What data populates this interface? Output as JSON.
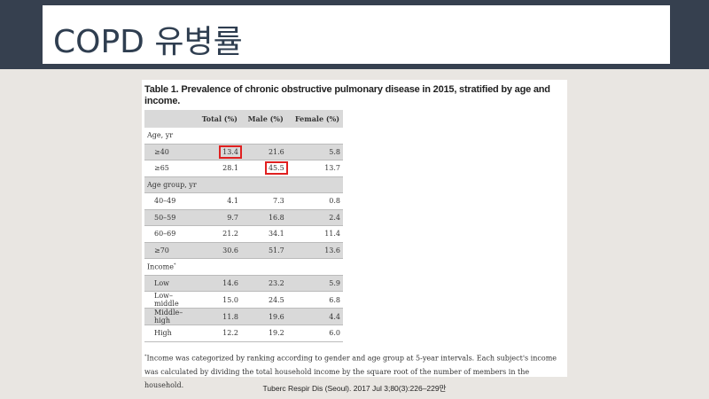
{
  "slide": {
    "title": "COPD 유병률",
    "source": "Tuberc Respir Dis (Seoul). 2017 Jul 3;80(3):226–229만"
  },
  "table": {
    "caption": "Table 1. Prevalence of chronic obstructive pulmonary disease in 2015, stratified by age and income.",
    "columns": [
      "",
      "Total (%)",
      "Male (%)",
      "Female (%)"
    ],
    "rows": [
      {
        "type": "section",
        "label": "Age, yr"
      },
      {
        "label": "≥40",
        "values": [
          "13.4",
          "21.6",
          "5.8"
        ],
        "highlight": [
          0
        ]
      },
      {
        "label": "≥65",
        "values": [
          "28.1",
          "45.5",
          "13.7"
        ],
        "highlight": [
          1
        ]
      },
      {
        "type": "section",
        "label": "Age group, yr"
      },
      {
        "label": "40–49",
        "values": [
          "4.1",
          "7.3",
          "0.8"
        ]
      },
      {
        "label": "50–59",
        "values": [
          "9.7",
          "16.8",
          "2.4"
        ]
      },
      {
        "label": "60–69",
        "values": [
          "21.2",
          "34.1",
          "11.4"
        ]
      },
      {
        "label": "≥70",
        "values": [
          "30.6",
          "51.7",
          "13.6"
        ]
      },
      {
        "type": "section",
        "label": "Income",
        "sup": "*"
      },
      {
        "label": "Low",
        "values": [
          "14.6",
          "23.2",
          "5.9"
        ]
      },
      {
        "label": "Low–middle",
        "values": [
          "15.0",
          "24.5",
          "6.8"
        ]
      },
      {
        "label": "Middle–high",
        "values": [
          "11.8",
          "19.6",
          "4.4"
        ]
      },
      {
        "label": "High",
        "values": [
          "12.2",
          "19.2",
          "6.0"
        ]
      }
    ],
    "footnote_mark": "*",
    "footnote": "Income was categorized by ranking according to gender and age group at 5-year intervals. Each subject's income was calculated by dividing the total household income by the square root of the number of members in the household."
  },
  "colors": {
    "band": "#36404f",
    "highlight": "#e02020",
    "row_shade": "#d9d9d9"
  }
}
